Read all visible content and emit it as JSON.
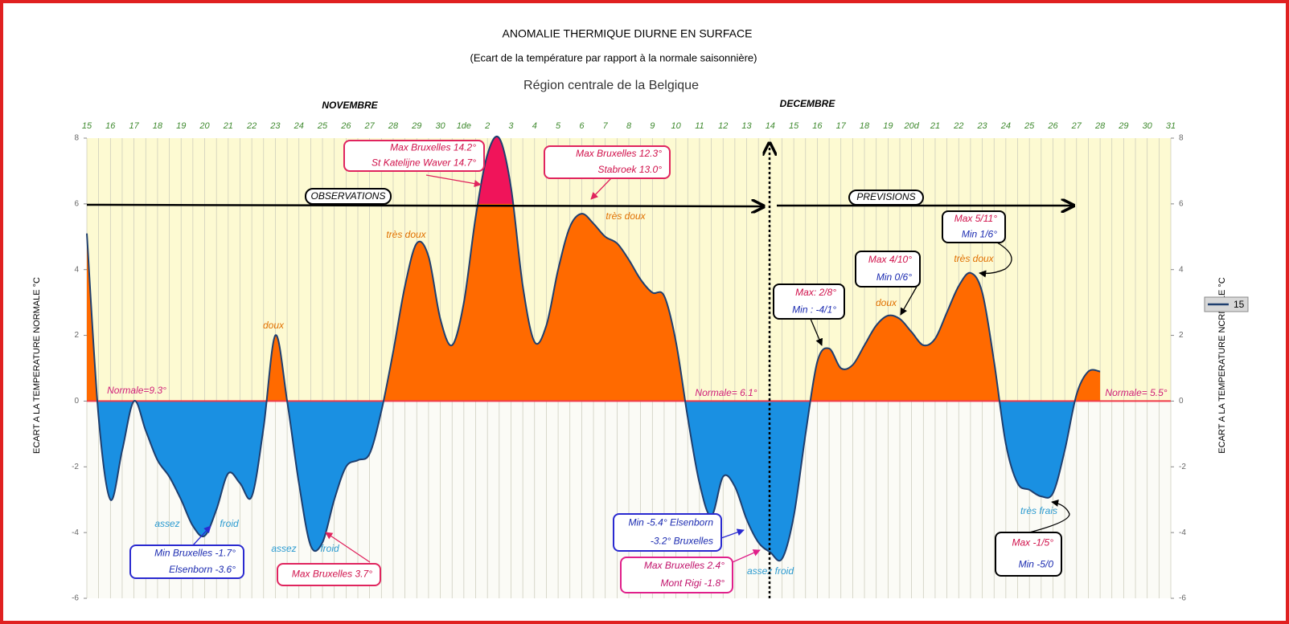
{
  "chart_data": {
    "type": "area",
    "title": "ANOMALIE THERMIQUE DIURNE EN SURFACE",
    "subtitle": "(Ecart de la température par rapport à la normale saisonnière)",
    "region": "Région centrale de la Belgique",
    "months": [
      "NOVEMBRE",
      "DECEMBRE"
    ],
    "ylabel": "ECART A LA TEMPERATURE NORMALE °C",
    "y2label": "ECART A LA TEMPERATURE NCRMALE °C",
    "categories": [
      "15",
      null,
      "16",
      null,
      "17",
      null,
      "18",
      null,
      "19",
      null,
      "20",
      null,
      "21",
      null,
      "22",
      null,
      "23",
      null,
      "24",
      null,
      "25",
      null,
      "26",
      null,
      "27",
      null,
      "28",
      null,
      "29",
      null,
      "30",
      null,
      "1de",
      null,
      "2",
      null,
      "3",
      null,
      "4",
      null,
      "5",
      null,
      "6",
      null,
      "7",
      null,
      "8",
      null,
      "9",
      null,
      "10",
      null,
      "11",
      null,
      "12",
      null,
      "13",
      null,
      "14",
      null,
      "15",
      null,
      "16",
      null,
      "17",
      null,
      "18",
      null,
      "19",
      null,
      "20d",
      null,
      "21",
      null,
      "22",
      null,
      "23",
      null,
      "24",
      null,
      "25",
      null,
      "26",
      null,
      "27",
      null,
      "28",
      null,
      "29",
      null,
      "30",
      null,
      "31"
    ],
    "series": [
      {
        "name": "15",
        "color": "#1f3f6f",
        "values": [
          5.1,
          -0.5,
          -3.0,
          -1.5,
          0.0,
          -0.9,
          -1.8,
          -2.3,
          -3.0,
          -3.8,
          -4.1,
          -3.3,
          -2.2,
          -2.5,
          -2.9,
          -0.8,
          2.0,
          0.0,
          -2.5,
          -4.4,
          -4.3,
          -3.0,
          -2.0,
          -1.8,
          -1.6,
          -0.3,
          1.5,
          3.5,
          4.8,
          4.4,
          2.5,
          1.7,
          3.0,
          5.6,
          7.5,
          8.0,
          6.5,
          3.5,
          1.8,
          2.3,
          4.0,
          5.3,
          5.7,
          5.4,
          5.0,
          4.8,
          4.3,
          3.7,
          3.3,
          3.2,
          1.8,
          -0.5,
          -2.5,
          -3.5,
          -2.3,
          -2.6,
          -3.6,
          -4.3,
          -4.6,
          -4.8,
          -3.5,
          -1.0,
          1.2,
          1.6,
          1.0,
          1.1,
          1.7,
          2.3,
          2.6,
          2.5,
          2.1,
          1.7,
          1.9,
          2.7,
          3.5,
          3.9,
          3.3,
          1.2,
          -1.3,
          -2.5,
          -2.7,
          -2.9,
          -2.8,
          -1.5,
          0.2,
          0.9,
          0.9,
          null,
          null,
          null,
          null,
          null,
          null
        ]
      }
    ],
    "positive_color": "#ff6a00",
    "negative_color": "#1a90e2",
    "highlight_above": 6,
    "highlight_color": "#f0145a",
    "ylim": [
      -6,
      8
    ],
    "yticks": [
      8,
      6,
      4,
      2,
      0,
      -2,
      -4,
      -6
    ],
    "y2lim": [
      -6,
      8
    ],
    "y2ticks": [
      8,
      6,
      4,
      2,
      0,
      -2,
      -4,
      -6
    ],
    "phases": [
      "OBSERVATIONS",
      "PREVISIONS"
    ],
    "labels": [
      {
        "text": "Normale=9.3°",
        "color": "#d0207a"
      },
      {
        "text": "Normale= 6.1°",
        "color": "#d0207a"
      },
      {
        "text": "Normale= 5.5°",
        "color": "#d0207a"
      },
      {
        "text": "très doux",
        "color": "#e07000"
      },
      {
        "text": "très doux",
        "color": "#e07000"
      },
      {
        "text": "doux",
        "color": "#e07000"
      },
      {
        "text": "doux",
        "color": "#e07000"
      },
      {
        "text": "très doux",
        "color": "#e07000"
      },
      {
        "text": "assez",
        "color": "#2a9ad0"
      },
      {
        "text": "froid",
        "color": "#2a9ad0"
      },
      {
        "text": "assez",
        "color": "#2a9ad0"
      },
      {
        "text": "froid",
        "color": "#2a9ad0"
      },
      {
        "text": "assez froid",
        "color": "#2a9ad0"
      },
      {
        "text": "très frais",
        "color": "#2a9ad0"
      }
    ],
    "annotations": [
      {
        "lines": [
          "Max Bruxelles 14.2°",
          "St Katelijne Waver 14.7°"
        ],
        "colors": [
          "#d0104a",
          "#d0104a"
        ],
        "border": "#e0245e"
      },
      {
        "lines": [
          "Max Bruxelles 12.3°",
          "Stabroek 13.0°"
        ],
        "colors": [
          "#d0104a",
          "#d0104a"
        ],
        "border": "#e0245e"
      },
      {
        "lines": [
          "Max: 2/8°",
          "Min : -4/1°"
        ],
        "colors": [
          "#d0104a",
          "#1a2ab0"
        ],
        "border": "#000000"
      },
      {
        "lines": [
          "Max 4/10°",
          "Min 0/6°"
        ],
        "colors": [
          "#d0104a",
          "#1a2ab0"
        ],
        "border": "#000000"
      },
      {
        "lines": [
          "Max 5/11°",
          "Min 1/6°"
        ],
        "colors": [
          "#d0104a",
          "#1a2ab0"
        ],
        "border": "#000000"
      },
      {
        "lines": [
          "Min Bruxelles -1.7°",
          "Elsenborn -3.6°"
        ],
        "colors": [
          "#1a2ab0",
          "#1a2ab0"
        ],
        "border": "#2a2ad0"
      },
      {
        "lines": [
          "Max Bruxelles 3.7°"
        ],
        "colors": [
          "#d0104a"
        ],
        "border": "#e0245e"
      },
      {
        "lines": [
          "Min -5.4° Elsenborn",
          "-3.2° Bruxelles"
        ],
        "colors": [
          "#1a2ab0",
          "#1a2ab0"
        ],
        "border": "#2a2ad0"
      },
      {
        "lines": [
          "Max Bruxelles 2.4°",
          "Mont Rigi -1.8°"
        ],
        "colors": [
          "#c0106a",
          "#c0106a"
        ],
        "border": "#e0208a"
      },
      {
        "lines": [
          "Max -1/5°",
          "Min -5/0"
        ],
        "colors": [
          "#d0104a",
          "#1a2ab0"
        ],
        "border": "#000000"
      }
    ]
  }
}
